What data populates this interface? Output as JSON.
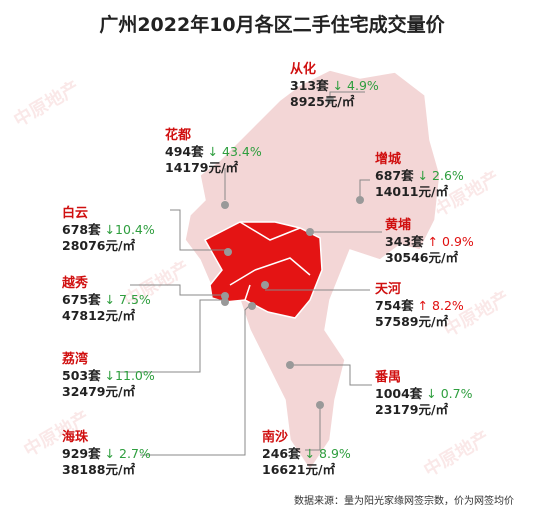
{
  "title": "广州2022年10月各区二手住宅成交量价",
  "watermark": "中原地产",
  "source": "数据来源：量为阳光家缘网签宗数，价为网签均价",
  "districts": [
    {
      "name": "从化",
      "volume": "313套",
      "change": "↓ 4.9%",
      "price": "8925元/㎡",
      "color": "#2e9e3e"
    },
    {
      "name": "花都",
      "volume": "494套",
      "change": "↓ 43.4%",
      "price": "14179元/㎡",
      "color": "#2e9e3e"
    },
    {
      "name": "增城",
      "volume": "687套",
      "change": "↓ 2.6%",
      "price": "14011元/㎡",
      "color": "#2e9e3e"
    },
    {
      "name": "白云",
      "volume": "678套",
      "change": "↓10.4%",
      "price": "28076元/㎡",
      "color": "#2e9e3e"
    },
    {
      "name": "黄埔",
      "volume": "343套",
      "change": "↑ 0.9%",
      "price": "30546元/㎡",
      "color": "#e01010"
    },
    {
      "name": "越秀",
      "volume": "675套",
      "change": "↓ 7.5%",
      "price": "47812元/㎡",
      "color": "#2e9e3e"
    },
    {
      "name": "天河",
      "volume": "754套",
      "change": "↑ 8.2%",
      "price": "57589元/㎡",
      "color": "#e01010"
    },
    {
      "name": "荔湾",
      "volume": "503套",
      "change": "↓11.0%",
      "price": "32479元/㎡",
      "color": "#2e9e3e"
    },
    {
      "name": "番禺",
      "volume": "1004套",
      "change": "↓ 0.7%",
      "price": "23179元/㎡",
      "color": "#2e9e3e"
    },
    {
      "name": "海珠",
      "volume": "929套",
      "change": "↓ 2.7%",
      "price": "38188元/㎡",
      "color": "#2e9e3e"
    },
    {
      "name": "南沙",
      "volume": "246套",
      "change": "↓ 8.9%",
      "price": "16621元/㎡",
      "color": "#2e9e3e"
    }
  ]
}
